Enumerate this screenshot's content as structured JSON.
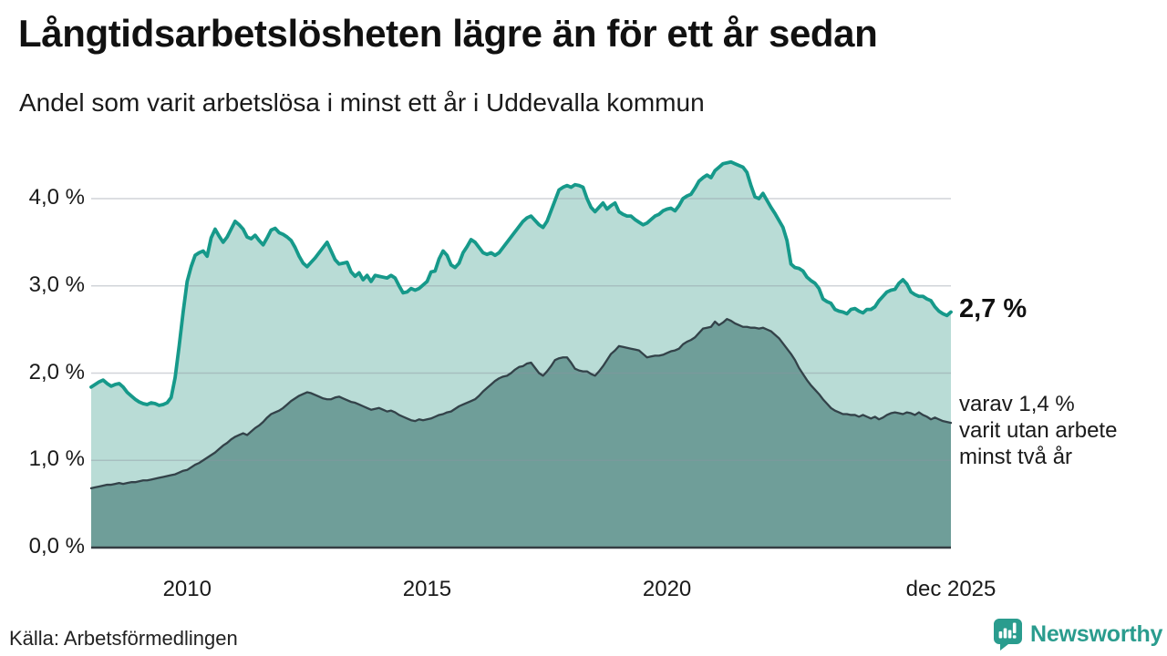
{
  "header": {
    "title": "Långtidsarbetslösheten lägre än för ett år sedan",
    "subtitle": "Andel som varit arbetslösa i minst ett år i Uddevalla kommun"
  },
  "annotations": {
    "latest_value": "2,7 %",
    "secondary_note_lines": [
      "varav 1,4 %",
      "varit utan arbete",
      "minst två år"
    ]
  },
  "footer": {
    "source": "Källa: Arbetsförmedlingen",
    "logo_text": "Newsworthy"
  },
  "colors": {
    "line_1yr": "#16998a",
    "fill_1yr": "#b9dcd6",
    "line_2yr": "#334249",
    "fill_2yr": "#6f9e99",
    "gridline": "rgba(140,148,160,0.4)",
    "axis_baseline": "#343d42",
    "logo_teal": "#2a9c8e",
    "text": "#1a1a1a"
  },
  "chart_data": {
    "type": "area",
    "title": "Långtidsarbetslösheten lägre än för ett år sedan",
    "subtitle": "Andel som varit arbetslösa i minst ett år i Uddevalla kommun",
    "interval": "monthly",
    "x_start": "2008-01",
    "x_end": "2025-12",
    "ylim": [
      0,
      4.6
    ],
    "grid": true,
    "legend_position": "right-annotations",
    "y_ticks": [
      {
        "label": "0,0 %",
        "value": 0
      },
      {
        "label": "1,0 %",
        "value": 1
      },
      {
        "label": "2,0 %",
        "value": 2
      },
      {
        "label": "3,0 %",
        "value": 3
      },
      {
        "label": "4,0 %",
        "value": 4
      }
    ],
    "x_ticks": [
      {
        "label": "2010",
        "month_index": 24
      },
      {
        "label": "2015",
        "month_index": 84
      },
      {
        "label": "2020",
        "month_index": 144
      },
      {
        "label": "dec 2025",
        "month_index": 215
      }
    ],
    "series": [
      {
        "name": "Arbetslösa minst ett år",
        "latest_label": "2,7 %",
        "color": "#16998a",
        "fill": "#b9dcd6",
        "line_width": 3.8,
        "values": [
          1.84,
          1.87,
          1.9,
          1.92,
          1.88,
          1.85,
          1.87,
          1.88,
          1.84,
          1.78,
          1.74,
          1.7,
          1.67,
          1.65,
          1.64,
          1.66,
          1.65,
          1.63,
          1.64,
          1.66,
          1.72,
          1.95,
          2.31,
          2.7,
          3.05,
          3.22,
          3.35,
          3.38,
          3.4,
          3.34,
          3.55,
          3.65,
          3.57,
          3.5,
          3.56,
          3.65,
          3.74,
          3.7,
          3.65,
          3.56,
          3.54,
          3.58,
          3.52,
          3.47,
          3.55,
          3.64,
          3.66,
          3.61,
          3.59,
          3.56,
          3.52,
          3.44,
          3.34,
          3.26,
          3.22,
          3.27,
          3.32,
          3.38,
          3.44,
          3.5,
          3.4,
          3.3,
          3.25,
          3.26,
          3.27,
          3.16,
          3.11,
          3.15,
          3.07,
          3.12,
          3.05,
          3.12,
          3.11,
          3.1,
          3.09,
          3.12,
          3.09,
          3.0,
          2.92,
          2.93,
          2.97,
          2.95,
          2.97,
          3.01,
          3.05,
          3.16,
          3.17,
          3.31,
          3.4,
          3.35,
          3.24,
          3.21,
          3.26,
          3.38,
          3.45,
          3.53,
          3.5,
          3.44,
          3.38,
          3.36,
          3.38,
          3.35,
          3.38,
          3.44,
          3.5,
          3.56,
          3.62,
          3.68,
          3.74,
          3.78,
          3.8,
          3.75,
          3.7,
          3.67,
          3.74,
          3.86,
          3.98,
          4.1,
          4.13,
          4.15,
          4.13,
          4.16,
          4.15,
          4.13,
          4.0,
          3.9,
          3.85,
          3.9,
          3.95,
          3.88,
          3.92,
          3.95,
          3.85,
          3.82,
          3.8,
          3.8,
          3.76,
          3.73,
          3.7,
          3.72,
          3.76,
          3.8,
          3.82,
          3.86,
          3.88,
          3.89,
          3.86,
          3.92,
          4.0,
          4.03,
          4.05,
          4.12,
          4.2,
          4.24,
          4.27,
          4.24,
          4.32,
          4.36,
          4.4,
          4.41,
          4.42,
          4.4,
          4.38,
          4.36,
          4.3,
          4.15,
          4.02,
          4.0,
          4.06,
          3.98,
          3.9,
          3.83,
          3.75,
          3.67,
          3.52,
          3.25,
          3.21,
          3.2,
          3.17,
          3.1,
          3.06,
          3.03,
          2.97,
          2.85,
          2.82,
          2.8,
          2.73,
          2.71,
          2.7,
          2.68,
          2.73,
          2.74,
          2.71,
          2.69,
          2.73,
          2.73,
          2.76,
          2.83,
          2.88,
          2.93,
          2.95,
          2.96,
          3.03,
          3.07,
          3.02,
          2.93,
          2.9,
          2.88,
          2.88,
          2.85,
          2.83,
          2.76,
          2.71,
          2.68,
          2.66,
          2.7
        ]
      },
      {
        "name": "Utan arbete minst två år",
        "latest_label": "1,4 %",
        "color": "#334249",
        "fill": "#6f9e99",
        "line_width": 2.3,
        "values": [
          0.68,
          0.69,
          0.7,
          0.71,
          0.72,
          0.72,
          0.73,
          0.74,
          0.73,
          0.74,
          0.75,
          0.75,
          0.76,
          0.77,
          0.77,
          0.78,
          0.79,
          0.8,
          0.81,
          0.82,
          0.83,
          0.84,
          0.86,
          0.88,
          0.89,
          0.92,
          0.95,
          0.97,
          1.0,
          1.03,
          1.06,
          1.09,
          1.13,
          1.17,
          1.2,
          1.24,
          1.27,
          1.29,
          1.31,
          1.29,
          1.33,
          1.37,
          1.4,
          1.44,
          1.49,
          1.53,
          1.55,
          1.57,
          1.6,
          1.64,
          1.68,
          1.71,
          1.74,
          1.76,
          1.78,
          1.77,
          1.75,
          1.73,
          1.71,
          1.7,
          1.7,
          1.72,
          1.73,
          1.71,
          1.69,
          1.67,
          1.66,
          1.64,
          1.62,
          1.6,
          1.58,
          1.59,
          1.6,
          1.58,
          1.56,
          1.57,
          1.55,
          1.52,
          1.5,
          1.48,
          1.46,
          1.45,
          1.47,
          1.46,
          1.47,
          1.48,
          1.5,
          1.52,
          1.53,
          1.55,
          1.56,
          1.59,
          1.62,
          1.64,
          1.66,
          1.68,
          1.7,
          1.74,
          1.79,
          1.83,
          1.87,
          1.91,
          1.94,
          1.96,
          1.97,
          2.0,
          2.04,
          2.07,
          2.08,
          2.11,
          2.12,
          2.06,
          2.0,
          1.97,
          2.02,
          2.08,
          2.15,
          2.17,
          2.18,
          2.18,
          2.12,
          2.05,
          2.03,
          2.02,
          2.02,
          1.99,
          1.97,
          2.02,
          2.08,
          2.15,
          2.22,
          2.26,
          2.31,
          2.3,
          2.29,
          2.28,
          2.27,
          2.26,
          2.22,
          2.18,
          2.19,
          2.2,
          2.2,
          2.21,
          2.23,
          2.25,
          2.26,
          2.28,
          2.33,
          2.36,
          2.38,
          2.41,
          2.46,
          2.51,
          2.52,
          2.53,
          2.59,
          2.55,
          2.58,
          2.62,
          2.6,
          2.57,
          2.55,
          2.53,
          2.53,
          2.52,
          2.52,
          2.51,
          2.52,
          2.5,
          2.48,
          2.44,
          2.4,
          2.34,
          2.28,
          2.22,
          2.15,
          2.06,
          1.99,
          1.92,
          1.86,
          1.81,
          1.76,
          1.7,
          1.65,
          1.6,
          1.57,
          1.55,
          1.53,
          1.53,
          1.52,
          1.52,
          1.5,
          1.52,
          1.5,
          1.48,
          1.5,
          1.47,
          1.49,
          1.52,
          1.54,
          1.55,
          1.54,
          1.53,
          1.55,
          1.54,
          1.52,
          1.55,
          1.52,
          1.5,
          1.47,
          1.49,
          1.47,
          1.45,
          1.44,
          1.43
        ]
      }
    ]
  }
}
